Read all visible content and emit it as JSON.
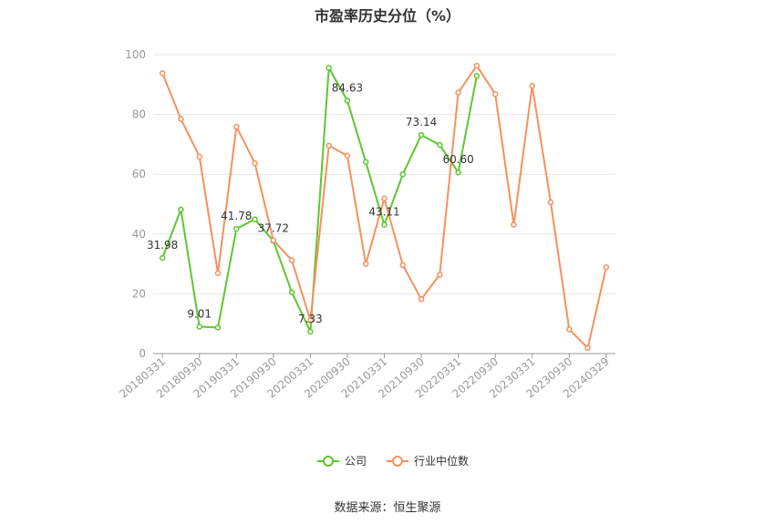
{
  "chart_data": {
    "type": "line",
    "title": "市盈率历史分位（%）",
    "source": "数据来源：恒生聚源",
    "ylim": [
      0,
      100
    ],
    "yticks": [
      0,
      20,
      40,
      60,
      80,
      100
    ],
    "xtick_labels": [
      "20180331",
      "20180930",
      "20190331",
      "20190930",
      "20200331",
      "20200930",
      "20210331",
      "20210930",
      "20220331",
      "20220930",
      "20230331",
      "20230930",
      "20240329"
    ],
    "x": [
      "20180331",
      "20180630",
      "20180930",
      "20181231",
      "20190331",
      "20190630",
      "20190930",
      "20191231",
      "20200331",
      "20200630",
      "20200930",
      "20201231",
      "20210331",
      "20210630",
      "20210930",
      "20211231",
      "20220331",
      "20220630",
      "20220930",
      "20221231",
      "20230331",
      "20230630",
      "20230930",
      "20231231",
      "20240329"
    ],
    "grid": true,
    "legend": "bottom-center",
    "series": [
      {
        "name": "公司",
        "color": "#5dc72e",
        "values": [
          31.98,
          48.2,
          9.01,
          8.7,
          41.78,
          44.9,
          37.72,
          20.5,
          7.33,
          95.6,
          84.63,
          64.1,
          43.11,
          60.0,
          73.14,
          69.8,
          60.6,
          92.9,
          null,
          null,
          null,
          null,
          null,
          null,
          null
        ],
        "data_labels": [
          {
            "index": 0,
            "text": "31.98"
          },
          {
            "index": 2,
            "text": "9.01"
          },
          {
            "index": 4,
            "text": "41.78"
          },
          {
            "index": 6,
            "text": "37.72"
          },
          {
            "index": 8,
            "text": "7.33"
          },
          {
            "index": 10,
            "text": "84.63"
          },
          {
            "index": 12,
            "text": "43.11"
          },
          {
            "index": 14,
            "text": "73.14"
          },
          {
            "index": 16,
            "text": "60.60"
          }
        ]
      },
      {
        "name": "行业中位数",
        "color": "#f4915e",
        "values": [
          93.8,
          78.5,
          65.9,
          26.9,
          75.9,
          63.7,
          37.9,
          31.2,
          11.1,
          69.6,
          66.2,
          30.0,
          51.9,
          29.6,
          18.2,
          26.4,
          87.3,
          96.3,
          86.8,
          43.1,
          89.6,
          50.6,
          8.1,
          1.9,
          28.9
        ]
      }
    ]
  }
}
